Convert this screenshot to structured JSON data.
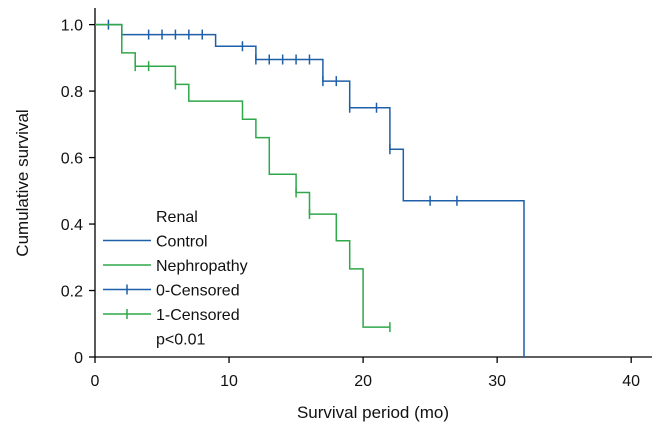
{
  "chart_data": {
    "type": "line",
    "title": "",
    "xlabel": "Survival period (mo)",
    "ylabel": "Cumulative survival",
    "xlim": [
      0,
      42
    ],
    "ylim": [
      0,
      1.05
    ],
    "x_ticks": [
      "0",
      "10",
      "20",
      "30",
      "40"
    ],
    "y_ticks": [
      "0",
      "0.2",
      "0.4",
      "0.6",
      "0.8",
      "1.0"
    ],
    "grid": false,
    "legend": {
      "title": "Renal",
      "entries": [
        "Control",
        "Nephropathy",
        "0-Censored",
        "1-Censored"
      ],
      "note": "p<0.01",
      "position": "lower-left"
    },
    "series": [
      {
        "name": "Control",
        "color": "#1f5fa8",
        "step": [
          [
            0,
            1.0
          ],
          [
            2,
            1.0
          ],
          [
            2,
            0.97
          ],
          [
            9,
            0.97
          ],
          [
            9,
            0.935
          ],
          [
            12,
            0.935
          ],
          [
            12,
            0.895
          ],
          [
            17,
            0.895
          ],
          [
            17,
            0.83
          ],
          [
            19,
            0.83
          ],
          [
            19,
            0.75
          ],
          [
            22,
            0.75
          ],
          [
            22,
            0.625
          ],
          [
            23,
            0.625
          ],
          [
            23,
            0.47
          ],
          [
            32,
            0.47
          ],
          [
            32,
            0.0
          ]
        ],
        "censored": [
          [
            1,
            1.0
          ],
          [
            2,
            0.97
          ],
          [
            4,
            0.97
          ],
          [
            5,
            0.97
          ],
          [
            6,
            0.97
          ],
          [
            7,
            0.97
          ],
          [
            8,
            0.97
          ],
          [
            11,
            0.935
          ],
          [
            12,
            0.895
          ],
          [
            13,
            0.895
          ],
          [
            14,
            0.895
          ],
          [
            15,
            0.895
          ],
          [
            16,
            0.895
          ],
          [
            17,
            0.83
          ],
          [
            18,
            0.83
          ],
          [
            19,
            0.75
          ],
          [
            21,
            0.75
          ],
          [
            22,
            0.625
          ],
          [
            25,
            0.47
          ],
          [
            27,
            0.47
          ]
        ]
      },
      {
        "name": "Nephropathy",
        "color": "#2ea84a",
        "step": [
          [
            0,
            1.0
          ],
          [
            2,
            1.0
          ],
          [
            2,
            0.915
          ],
          [
            3,
            0.915
          ],
          [
            3,
            0.875
          ],
          [
            6,
            0.875
          ],
          [
            6,
            0.82
          ],
          [
            7,
            0.82
          ],
          [
            7,
            0.77
          ],
          [
            11,
            0.77
          ],
          [
            11,
            0.715
          ],
          [
            12,
            0.715
          ],
          [
            12,
            0.66
          ],
          [
            13,
            0.66
          ],
          [
            13,
            0.55
          ],
          [
            15,
            0.55
          ],
          [
            15,
            0.495
          ],
          [
            16,
            0.495
          ],
          [
            16,
            0.43
          ],
          [
            18,
            0.43
          ],
          [
            18,
            0.35
          ],
          [
            19,
            0.35
          ],
          [
            19,
            0.265
          ],
          [
            20,
            0.265
          ],
          [
            20,
            0.09
          ],
          [
            22,
            0.09
          ]
        ],
        "censored": [
          [
            3,
            0.875
          ],
          [
            4,
            0.875
          ],
          [
            6,
            0.82
          ],
          [
            15,
            0.495
          ],
          [
            16,
            0.43
          ],
          [
            22,
            0.09
          ]
        ]
      }
    ]
  }
}
